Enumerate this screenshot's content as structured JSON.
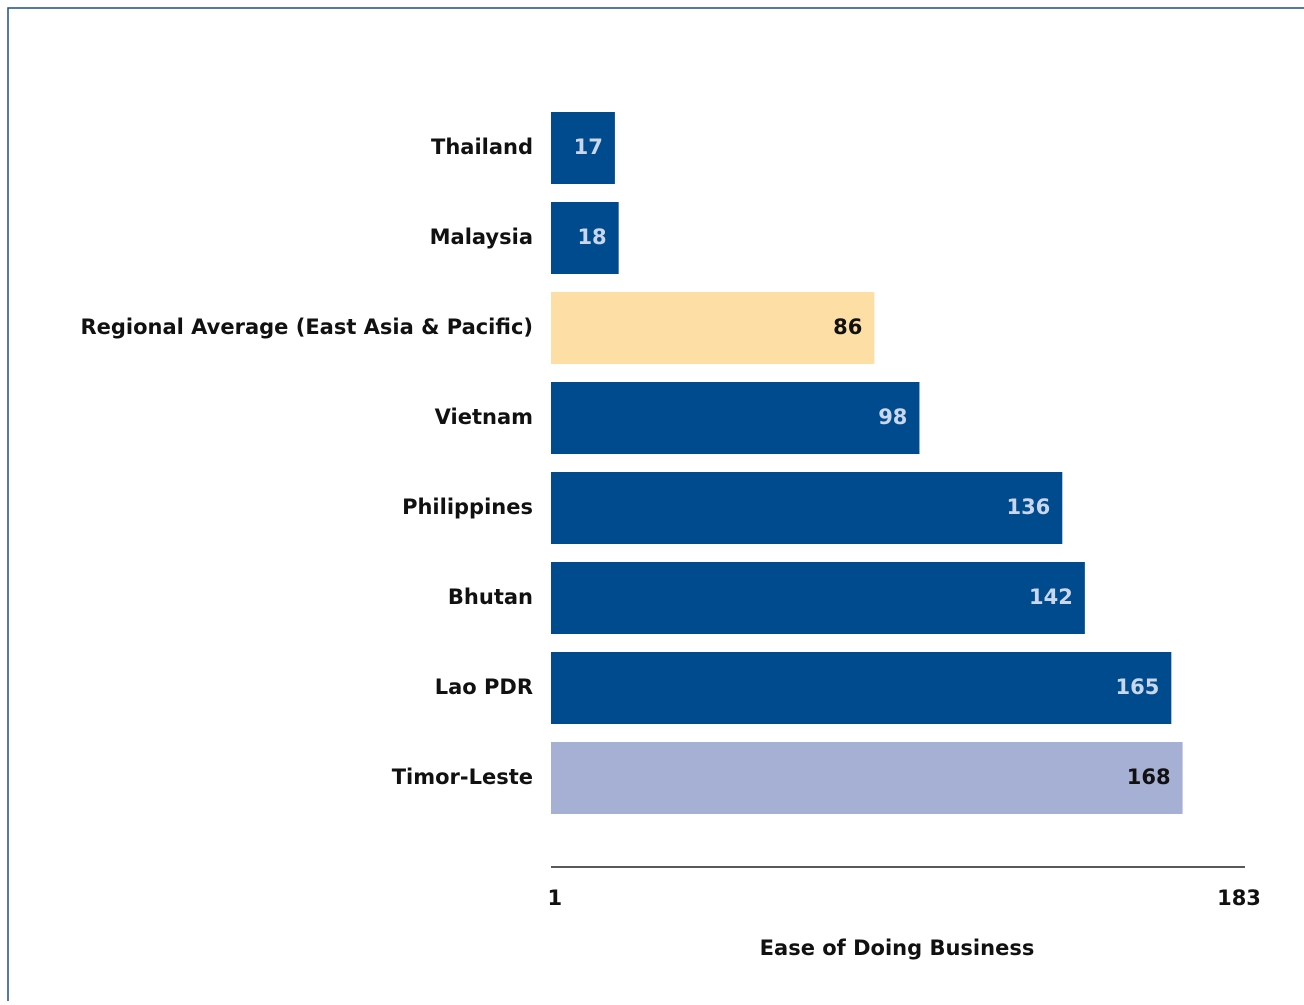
{
  "chart_data": {
    "type": "bar",
    "orientation": "horizontal",
    "categories": [
      "Thailand",
      "Malaysia",
      "Regional Average (East Asia & Pacific)",
      "Vietnam",
      "Philippines",
      "Bhutan",
      "Lao PDR",
      "Timor-Leste"
    ],
    "values": [
      17,
      18,
      86,
      98,
      136,
      142,
      165,
      168
    ],
    "colors": [
      "#004b8d",
      "#004b8d",
      "#fddea5",
      "#004b8d",
      "#004b8d",
      "#004b8d",
      "#004b8d",
      "#a6b0d4"
    ],
    "xlim": [
      0,
      183
    ],
    "xticks": [
      1,
      183
    ],
    "xlabel": "Ease of Doing Business"
  }
}
